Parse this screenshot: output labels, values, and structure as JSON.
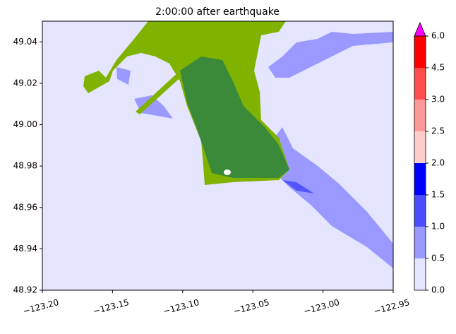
{
  "chart_data": {
    "type": "contour-map",
    "title": "2:00:00 after earthquake",
    "xlim": [
      -123.2,
      -122.95
    ],
    "xticks": [
      {
        "value": -123.2,
        "label": "−123.20"
      },
      {
        "value": -123.15,
        "label": "−123.15"
      },
      {
        "value": -123.1,
        "label": "−123.10"
      },
      {
        "value": -123.05,
        "label": "−123.05"
      },
      {
        "value": -123.0,
        "label": "−123.00"
      },
      {
        "value": -122.95,
        "label": "−122.95"
      }
    ],
    "ylim": [
      48.92,
      49.05
    ],
    "yticks": [
      48.92,
      48.94,
      48.96,
      48.98,
      {
        "value": 49.0,
        "label": "49.00"
      },
      49.02,
      49.04
    ],
    "colorbar": {
      "levels": [
        {
          "value": 0,
          "label": "0.0"
        },
        0.5,
        {
          "value": 1,
          "label": "1.0"
        },
        1.5,
        {
          "value": 2,
          "label": "2.0"
        },
        2.5,
        {
          "value": 3,
          "label": "3.0"
        },
        4.5,
        {
          "value": 6,
          "label": "6.0"
        }
      ],
      "colors": [
        "#e5e5ff",
        "#9999ff",
        "#4c4cff",
        "#0000ff",
        "#ffcccc",
        "#ff9999",
        "#ff4c4c",
        "#ff0000"
      ],
      "extend_color": "#ff00ff"
    }
  }
}
